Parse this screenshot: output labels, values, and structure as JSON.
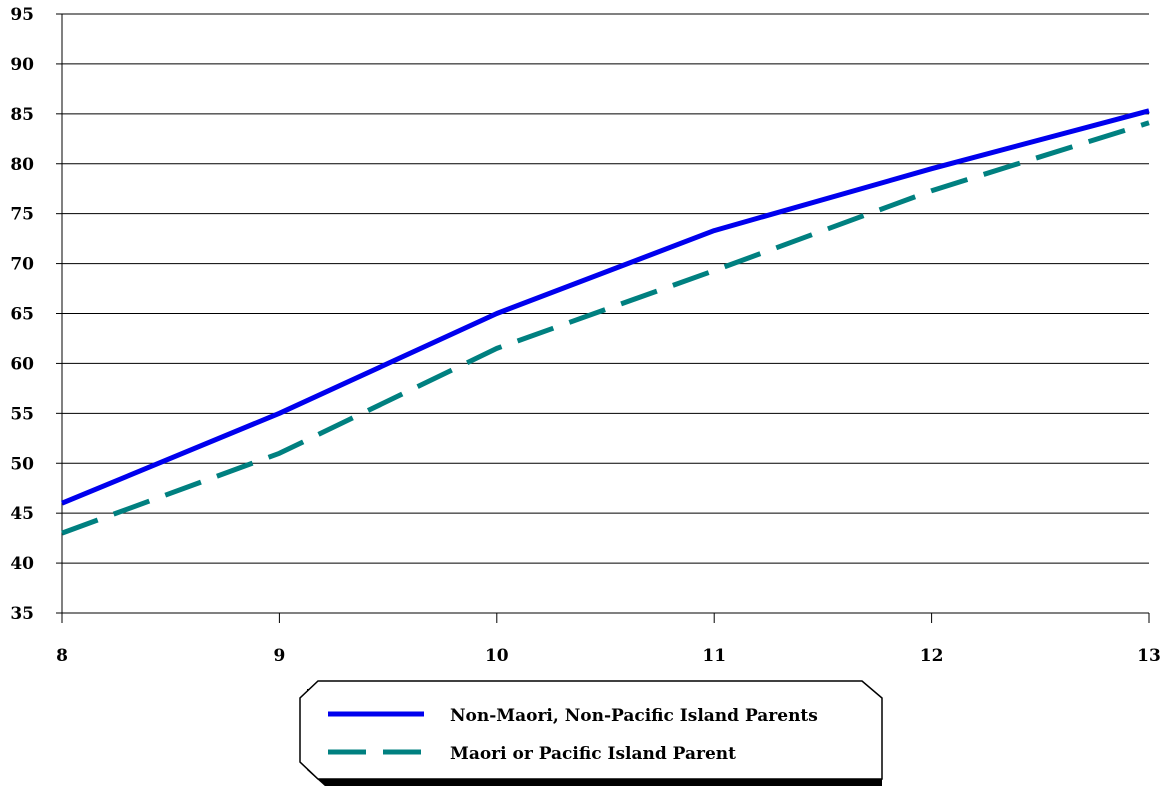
{
  "chart_data": {
    "type": "line",
    "x": [
      8,
      9,
      10,
      11,
      12,
      13
    ],
    "xlim": [
      8,
      13
    ],
    "ylim": [
      35,
      95
    ],
    "y_ticks": [
      35,
      40,
      45,
      50,
      55,
      60,
      65,
      70,
      75,
      80,
      85,
      90,
      95
    ],
    "grid": true,
    "legend_position": "bottom-center",
    "series": [
      {
        "name": "Non-Maori, Non-Pacific Island Parents",
        "values": [
          46,
          55,
          65,
          73.3,
          79.5,
          85.3
        ],
        "color": "#0000ee",
        "line_style": "solid"
      },
      {
        "name": "Maori or Pacific Island Parent",
        "values": [
          43,
          51,
          61.5,
          69.3,
          77.3,
          84.1
        ],
        "color": "#008080",
        "line_style": "dashed"
      }
    ]
  }
}
